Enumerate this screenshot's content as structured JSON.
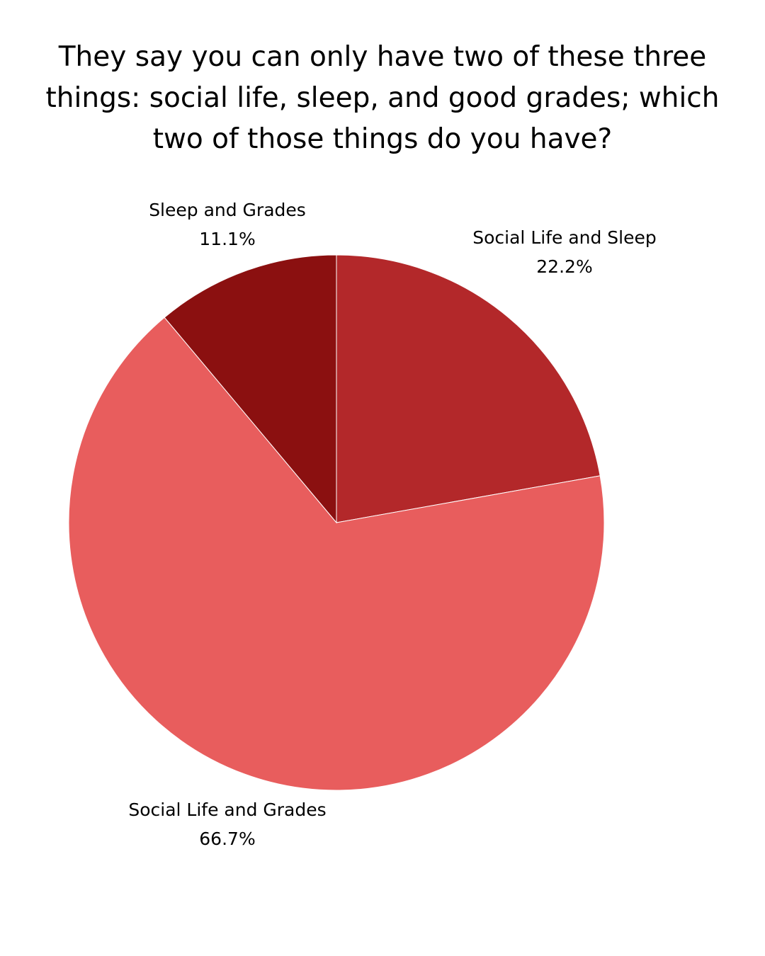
{
  "chart_data": {
    "type": "pie",
    "title": "They say you can only have two of these three things: social life, sleep, and good grades; which two of those things do you have?",
    "title_lines": [
      "They say you can only have two of these three",
      "things: social life, sleep, and good grades; which",
      "two of those things do you have?"
    ],
    "slices": [
      {
        "label": "Sleep and Grades",
        "value": 11.1,
        "value_label": "11.1%",
        "color": "#8B1010"
      },
      {
        "label": "Social Life and Sleep",
        "value": 22.2,
        "value_label": "22.2%",
        "color": "#B3282A"
      },
      {
        "label": "Social Life and Grades",
        "value": 66.7,
        "value_label": "66.7%",
        "color": "#E85D5D"
      }
    ]
  }
}
